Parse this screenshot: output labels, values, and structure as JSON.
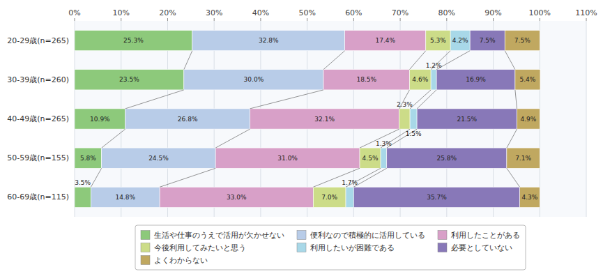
{
  "chart_data": {
    "type": "bar",
    "orientation": "horizontal",
    "stacked": true,
    "data_labels": true,
    "grid": true,
    "legend": "bottom",
    "categories": [
      "20-29歳(n=265)",
      "30-39歳(n=260)",
      "40-49歳(n=265)",
      "50-59歳(n=155)",
      "60-69歳(n=115)"
    ],
    "series": [
      {
        "name": "生活や仕事のうえで活用が欠かせない",
        "color": "#8DC97B",
        "values": [
          25.3,
          23.5,
          10.9,
          5.8,
          3.5
        ],
        "value_labels": [
          "25.3%",
          "23.5%",
          "10.9%",
          "5.8%",
          "3.5%"
        ]
      },
      {
        "name": "便利なので積極的に活用している",
        "color": "#B8CCE8",
        "values": [
          32.8,
          30.0,
          26.8,
          24.5,
          14.8
        ],
        "value_labels": [
          "32.8%",
          "30.0%",
          "26.8%",
          "24.5%",
          "14.8%"
        ]
      },
      {
        "name": "利用したことがある",
        "color": "#D8A0C8",
        "values": [
          17.4,
          18.5,
          32.1,
          31.0,
          33.0
        ],
        "value_labels": [
          "17.4%",
          "18.5%",
          "32.1%",
          "31.0%",
          "33.0%"
        ]
      },
      {
        "name": "今後利用してみたいと思う",
        "color": "#CCDC88",
        "values": [
          5.3,
          4.6,
          2.3,
          4.5,
          7.0
        ],
        "value_labels": [
          "5.3%",
          "4.6%",
          "2.3%",
          "4.5%",
          "7.0%"
        ]
      },
      {
        "name": "利用したいが困難である",
        "color": "#A8D8E8",
        "values": [
          4.2,
          1.2,
          1.5,
          1.3,
          1.7
        ],
        "value_labels": [
          "4.2%",
          "1.2%",
          "1.5%",
          "1.3%",
          "1.7%"
        ]
      },
      {
        "name": "必要としていない",
        "color": "#8878B8",
        "values": [
          7.5,
          16.9,
          21.5,
          25.8,
          35.7
        ],
        "value_labels": [
          "7.5%",
          "16.9%",
          "21.5%",
          "25.8%",
          "35.7%"
        ]
      },
      {
        "name": "よくわからない",
        "color": "#C0A860",
        "values": [
          7.5,
          5.4,
          4.9,
          7.1,
          4.3
        ],
        "value_labels": [
          "7.5%",
          "5.4%",
          "4.9%",
          "7.1%",
          "4.3%"
        ]
      }
    ],
    "xlim": [
      0,
      110
    ],
    "xticks": [
      {
        "value": 0,
        "label": "0%"
      },
      {
        "value": 10,
        "label": "10%"
      },
      {
        "value": 20,
        "label": "20%"
      },
      {
        "value": 30,
        "label": "30%"
      },
      {
        "value": 40,
        "label": "40%"
      },
      {
        "value": 50,
        "label": "50%"
      },
      {
        "value": 60,
        "label": "60%"
      },
      {
        "value": 70,
        "label": "70%"
      },
      {
        "value": 80,
        "label": "80%"
      },
      {
        "value": 90,
        "label": "90%"
      },
      {
        "value": 100,
        "label": "100%"
      },
      {
        "value": 110,
        "label": "110%"
      }
    ]
  }
}
